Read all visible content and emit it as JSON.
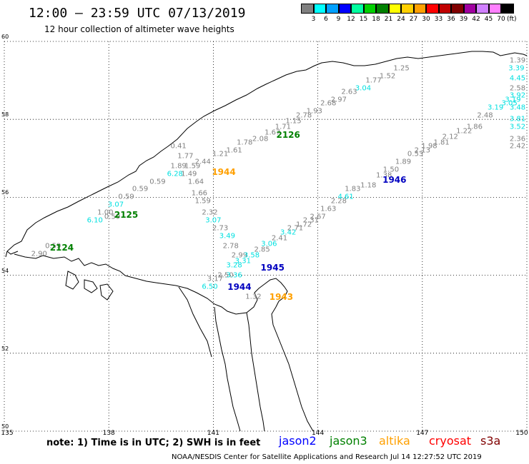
{
  "title": "12:00 – 23:59 UTC 07/13/2019",
  "subtitle": "12 hour collection of altimeter wave heights",
  "colorbar": {
    "colors": [
      "#808080",
      "#00ffff",
      "#00a0ff",
      "#0000ff",
      "#00ffa0",
      "#00d000",
      "#008000",
      "#ffff00",
      "#ffd000",
      "#ffa000",
      "#ff0000",
      "#c00000",
      "#800000",
      "#a000a0",
      "#d080ff",
      "#ff80ff",
      "#000000"
    ],
    "labels": [
      "3",
      "6",
      "9",
      "12",
      "15",
      "18",
      "21",
      "24",
      "27",
      "30",
      "33",
      "36",
      "39",
      "42",
      "45",
      "70"
    ],
    "unit": "(ft)"
  },
  "map": {
    "lon_range": [
      135,
      150
    ],
    "lat_range": [
      50,
      60
    ],
    "lon_ticks": [
      "135",
      "138",
      "141",
      "144",
      "147",
      "150"
    ],
    "lat_ticks": [
      "60",
      "58",
      "56",
      "54",
      "52",
      "50"
    ]
  },
  "observations": [
    {
      "text": "1.25",
      "lon": 146.4,
      "lat": 59.3,
      "color": "#808080"
    },
    {
      "text": "1.52",
      "lon": 146.0,
      "lat": 59.1,
      "color": "#808080"
    },
    {
      "text": "1.77",
      "lon": 145.6,
      "lat": 59.0,
      "color": "#808080"
    },
    {
      "text": "3.04",
      "lon": 145.3,
      "lat": 58.8,
      "color": "#00e0e0"
    },
    {
      "text": "2.63",
      "lon": 144.9,
      "lat": 58.7,
      "color": "#808080"
    },
    {
      "text": "2.97",
      "lon": 144.6,
      "lat": 58.5,
      "color": "#808080"
    },
    {
      "text": "2.68",
      "lon": 144.3,
      "lat": 58.4,
      "color": "#808080"
    },
    {
      "text": "1.93",
      "lon": 143.9,
      "lat": 58.2,
      "color": "#808080"
    },
    {
      "text": "2.78",
      "lon": 143.6,
      "lat": 58.1,
      "color": "#808080"
    },
    {
      "text": "1.15",
      "lon": 143.3,
      "lat": 57.95,
      "color": "#808080"
    },
    {
      "text": "1.71",
      "lon": 143.0,
      "lat": 57.8,
      "color": "#808080"
    },
    {
      "text": "1.67",
      "lon": 142.7,
      "lat": 57.65,
      "color": "#808080"
    },
    {
      "text": "2.08",
      "lon": 142.35,
      "lat": 57.5,
      "color": "#808080"
    },
    {
      "text": "1.78",
      "lon": 141.9,
      "lat": 57.4,
      "color": "#808080"
    },
    {
      "text": "1.61",
      "lon": 141.6,
      "lat": 57.2,
      "color": "#808080"
    },
    {
      "text": "1.21",
      "lon": 141.2,
      "lat": 57.1,
      "color": "#808080"
    },
    {
      "text": "0.41",
      "lon": 140.0,
      "lat": 57.3,
      "color": "#808080"
    },
    {
      "text": "1.77",
      "lon": 140.2,
      "lat": 57.05,
      "color": "#808080"
    },
    {
      "text": "2.44",
      "lon": 140.7,
      "lat": 56.9,
      "color": "#808080"
    },
    {
      "text": "1.89",
      "lon": 140.0,
      "lat": 56.8,
      "color": "#808080"
    },
    {
      "text": "1.59",
      "lon": 140.4,
      "lat": 56.8,
      "color": "#808080"
    },
    {
      "text": "6.28",
      "lon": 139.9,
      "lat": 56.6,
      "color": "#00e0e0"
    },
    {
      "text": "1.49",
      "lon": 140.3,
      "lat": 56.6,
      "color": "#808080"
    },
    {
      "text": "0.59",
      "lon": 139.4,
      "lat": 56.4,
      "color": "#808080"
    },
    {
      "text": "1.64",
      "lon": 140.5,
      "lat": 56.4,
      "color": "#808080"
    },
    {
      "text": "0.59",
      "lon": 138.9,
      "lat": 56.2,
      "color": "#808080"
    },
    {
      "text": "1.66",
      "lon": 140.6,
      "lat": 56.1,
      "color": "#808080"
    },
    {
      "text": "0.59",
      "lon": 138.5,
      "lat": 56.0,
      "color": "#808080"
    },
    {
      "text": "1.59",
      "lon": 140.7,
      "lat": 55.9,
      "color": "#808080"
    },
    {
      "text": "3.07",
      "lon": 138.2,
      "lat": 55.8,
      "color": "#00e0e0"
    },
    {
      "text": "1.00",
      "lon": 137.9,
      "lat": 55.6,
      "color": "#808080"
    },
    {
      "text": "0.59",
      "lon": 138.1,
      "lat": 55.5,
      "color": "#808080"
    },
    {
      "text": "6.10",
      "lon": 137.6,
      "lat": 55.4,
      "color": "#00e0e0"
    },
    {
      "text": "2.32",
      "lon": 140.9,
      "lat": 55.6,
      "color": "#808080"
    },
    {
      "text": "3.07",
      "lon": 141.0,
      "lat": 55.4,
      "color": "#00e0e0"
    },
    {
      "text": "2.73",
      "lon": 141.2,
      "lat": 55.2,
      "color": "#808080"
    },
    {
      "text": "3.49",
      "lon": 141.4,
      "lat": 55.0,
      "color": "#00e0e0"
    },
    {
      "text": "2.78",
      "lon": 141.5,
      "lat": 54.75,
      "color": "#808080"
    },
    {
      "text": "0.59",
      "lon": 136.4,
      "lat": 54.75,
      "color": "#808080"
    },
    {
      "text": "2.90",
      "lon": 136.0,
      "lat": 54.55,
      "color": "#808080"
    },
    {
      "text": "2.99",
      "lon": 141.75,
      "lat": 54.5,
      "color": "#808080"
    },
    {
      "text": "3.58",
      "lon": 142.1,
      "lat": 54.5,
      "color": "#00e0e0"
    },
    {
      "text": "3.31",
      "lon": 141.85,
      "lat": 54.35,
      "color": "#00e0e0"
    },
    {
      "text": "3.28",
      "lon": 141.6,
      "lat": 54.25,
      "color": "#00e0e0"
    },
    {
      "text": "2.85",
      "lon": 142.4,
      "lat": 54.65,
      "color": "#808080"
    },
    {
      "text": "3.06",
      "lon": 142.6,
      "lat": 54.8,
      "color": "#00e0e0"
    },
    {
      "text": "2.41",
      "lon": 142.9,
      "lat": 54.95,
      "color": "#808080"
    },
    {
      "text": "3.42",
      "lon": 143.15,
      "lat": 55.1,
      "color": "#00e0e0"
    },
    {
      "text": "2.71",
      "lon": 143.35,
      "lat": 55.2,
      "color": "#808080"
    },
    {
      "text": "1.72",
      "lon": 143.6,
      "lat": 55.3,
      "color": "#808080"
    },
    {
      "text": "2.31",
      "lon": 143.8,
      "lat": 55.4,
      "color": "#808080"
    },
    {
      "text": "2.67",
      "lon": 144.0,
      "lat": 55.5,
      "color": "#808080"
    },
    {
      "text": "1.63",
      "lon": 144.3,
      "lat": 55.7,
      "color": "#808080"
    },
    {
      "text": "2.28",
      "lon": 144.6,
      "lat": 55.9,
      "color": "#808080"
    },
    {
      "text": "4.61",
      "lon": 144.8,
      "lat": 56.0,
      "color": "#00e0e0"
    },
    {
      "text": "1.83",
      "lon": 145.0,
      "lat": 56.2,
      "color": "#808080"
    },
    {
      "text": "1.18",
      "lon": 145.45,
      "lat": 56.3,
      "color": "#808080"
    },
    {
      "text": "1.38",
      "lon": 145.9,
      "lat": 56.55,
      "color": "#808080"
    },
    {
      "text": "1.50",
      "lon": 146.1,
      "lat": 56.7,
      "color": "#808080"
    },
    {
      "text": "1.89",
      "lon": 146.45,
      "lat": 56.9,
      "color": "#808080"
    },
    {
      "text": "0.53",
      "lon": 146.8,
      "lat": 57.1,
      "color": "#808080"
    },
    {
      "text": "2.13",
      "lon": 147.0,
      "lat": 57.2,
      "color": "#808080"
    },
    {
      "text": "1.98",
      "lon": 147.2,
      "lat": 57.3,
      "color": "#808080"
    },
    {
      "text": "1.81",
      "lon": 147.55,
      "lat": 57.4,
      "color": "#808080"
    },
    {
      "text": "2.12",
      "lon": 147.8,
      "lat": 57.55,
      "color": "#808080"
    },
    {
      "text": "1.22",
      "lon": 148.2,
      "lat": 57.7,
      "color": "#808080"
    },
    {
      "text": "1.86",
      "lon": 148.5,
      "lat": 57.8,
      "color": "#808080"
    },
    {
      "text": "2.48",
      "lon": 148.8,
      "lat": 58.1,
      "color": "#808080"
    },
    {
      "text": "3.19",
      "lon": 149.1,
      "lat": 58.3,
      "color": "#00e0e0"
    },
    {
      "text": "3.05",
      "lon": 149.5,
      "lat": 58.4,
      "color": "#00e0e0"
    },
    {
      "text": "3.19",
      "lon": 149.6,
      "lat": 58.5,
      "color": "#00e0e0"
    },
    {
      "text": "3.39",
      "lon": 149.7,
      "lat": 59.3,
      "color": "#00e0e0"
    },
    {
      "text": "1.39",
      "lon": 149.75,
      "lat": 59.5,
      "color": "#808080"
    },
    {
      "text": "4.45",
      "lon": 149.75,
      "lat": 59.05,
      "color": "#00e0e0"
    },
    {
      "text": "2.58",
      "lon": 149.85,
      "lat": 58.8,
      "color": "#808080"
    },
    {
      "text": "3.92",
      "lon": 149.85,
      "lat": 58.6,
      "color": "#00e0e0"
    },
    {
      "text": "3.48",
      "lon": 149.9,
      "lat": 58.3,
      "color": "#00e0e0"
    },
    {
      "text": "3.81",
      "lon": 149.9,
      "lat": 58.0,
      "color": "#00e0e0"
    },
    {
      "text": "3.52",
      "lon": 149.95,
      "lat": 57.8,
      "color": "#00e0e0"
    },
    {
      "text": "2.36",
      "lon": 149.95,
      "lat": 57.5,
      "color": "#808080"
    },
    {
      "text": "2.42",
      "lon": 149.95,
      "lat": 57.3,
      "color": "#808080"
    },
    {
      "text": "2.50",
      "lon": 141.35,
      "lat": 54.0,
      "color": "#808080"
    },
    {
      "text": "3.36",
      "lon": 141.6,
      "lat": 54.0,
      "color": "#00e0e0"
    },
    {
      "text": "3.17",
      "lon": 141.05,
      "lat": 53.9,
      "color": "#808080"
    },
    {
      "text": "6.50",
      "lon": 140.9,
      "lat": 53.7,
      "color": "#00e0e0"
    },
    {
      "text": "1.32",
      "lon": 142.15,
      "lat": 53.45,
      "color": "#808080"
    }
  ],
  "pass_labels": [
    {
      "text": "2126",
      "lon": 143.15,
      "lat": 57.6,
      "color": "#008000"
    },
    {
      "text": "1944",
      "lon": 141.3,
      "lat": 56.65,
      "color": "#ffa000"
    },
    {
      "text": "1946",
      "lon": 146.2,
      "lat": 56.45,
      "color": "#0000c0"
    },
    {
      "text": "2125",
      "lon": 138.5,
      "lat": 55.55,
      "color": "#008000"
    },
    {
      "text": "2124",
      "lon": 136.65,
      "lat": 54.7,
      "color": "#008000"
    },
    {
      "text": "1945",
      "lon": 142.7,
      "lat": 54.2,
      "color": "#0000c0"
    },
    {
      "text": "1944",
      "lon": 141.75,
      "lat": 53.7,
      "color": "#0000c0"
    },
    {
      "text": "1943",
      "lon": 142.95,
      "lat": 53.45,
      "color": "#ffa000"
    }
  ],
  "note": "note:  1) Time is in UTC;  2) SWH is in feet",
  "legend": [
    {
      "text": "jason2",
      "color": "#0000ff"
    },
    {
      "text": "jason3",
      "color": "#008000"
    },
    {
      "text": "altika",
      "color": "#ffa000"
    },
    {
      "text": "cryosat",
      "color": "#ff0000"
    },
    {
      "text": "s3a",
      "color": "#800000"
    }
  ],
  "credit": "NOAA/NESDIS Center for Satellite Applications and Research    Jul 14 12:27:52 UTC 2019"
}
